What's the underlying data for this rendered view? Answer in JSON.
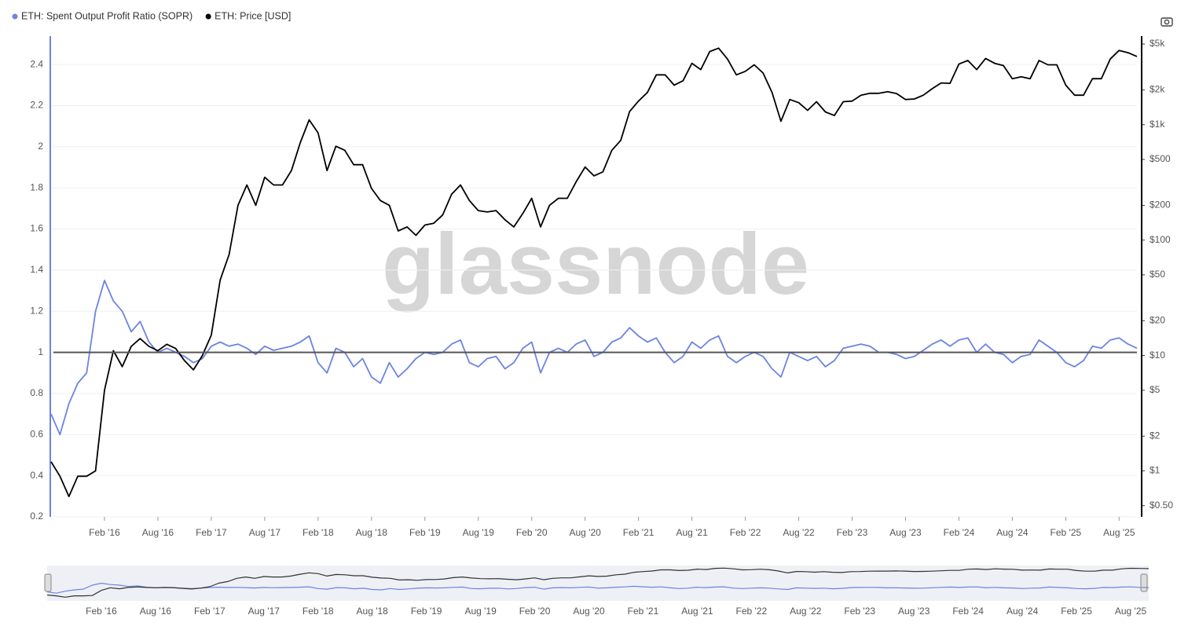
{
  "chart_data": {
    "type": "line",
    "watermark": "glassnode",
    "x": [
      "2015-08",
      "2015-09",
      "2015-10",
      "2015-11",
      "2015-12",
      "2016-01",
      "2016-02",
      "2016-03",
      "2016-04",
      "2016-05",
      "2016-06",
      "2016-07",
      "2016-08",
      "2016-09",
      "2016-10",
      "2016-11",
      "2016-12",
      "2017-01",
      "2017-02",
      "2017-03",
      "2017-04",
      "2017-05",
      "2017-06",
      "2017-07",
      "2017-08",
      "2017-09",
      "2017-10",
      "2017-11",
      "2017-12",
      "2018-01",
      "2018-02",
      "2018-03",
      "2018-04",
      "2018-05",
      "2018-06",
      "2018-07",
      "2018-08",
      "2018-09",
      "2018-10",
      "2018-11",
      "2018-12",
      "2019-01",
      "2019-02",
      "2019-03",
      "2019-04",
      "2019-05",
      "2019-06",
      "2019-07",
      "2019-08",
      "2019-09",
      "2019-10",
      "2019-11",
      "2019-12",
      "2020-01",
      "2020-02",
      "2020-03",
      "2020-04",
      "2020-05",
      "2020-06",
      "2020-07",
      "2020-08",
      "2020-09",
      "2020-10",
      "2020-11",
      "2020-12",
      "2021-01",
      "2021-02",
      "2021-03",
      "2021-04",
      "2021-05",
      "2021-06",
      "2021-07",
      "2021-08",
      "2021-09",
      "2021-10",
      "2021-11",
      "2021-12",
      "2022-01",
      "2022-02",
      "2022-03",
      "2022-04",
      "2022-05",
      "2022-06",
      "2022-07",
      "2022-08",
      "2022-09",
      "2022-10",
      "2022-11",
      "2022-12",
      "2023-01",
      "2023-02",
      "2023-03",
      "2023-04",
      "2023-05",
      "2023-06",
      "2023-07",
      "2023-08",
      "2023-09",
      "2023-10",
      "2023-11",
      "2023-12",
      "2024-01",
      "2024-02",
      "2024-03",
      "2024-04",
      "2024-05",
      "2024-06",
      "2024-07",
      "2024-08",
      "2024-09",
      "2024-10",
      "2024-11",
      "2024-12",
      "2025-01",
      "2025-02",
      "2025-03",
      "2025-04",
      "2025-05",
      "2025-06",
      "2025-07",
      "2025-08",
      "2025-09",
      "2025-10"
    ],
    "series": [
      {
        "name": "ETH: Spent Output Profit Ratio (SOPR)",
        "color": "#6c84e0",
        "axis": "y",
        "values": [
          0.7,
          0.6,
          0.75,
          0.85,
          0.9,
          1.2,
          1.35,
          1.25,
          1.2,
          1.1,
          1.15,
          1.05,
          1.0,
          1.02,
          1.0,
          0.98,
          0.95,
          0.97,
          1.03,
          1.05,
          1.03,
          1.04,
          1.02,
          0.99,
          1.03,
          1.01,
          1.02,
          1.03,
          1.05,
          1.08,
          0.95,
          0.9,
          1.02,
          1.0,
          0.93,
          0.97,
          0.88,
          0.85,
          0.95,
          0.88,
          0.92,
          0.97,
          1.0,
          0.99,
          1.0,
          1.04,
          1.06,
          0.95,
          0.93,
          0.97,
          0.98,
          0.92,
          0.95,
          1.02,
          1.05,
          0.9,
          1.0,
          1.02,
          1.0,
          1.04,
          1.06,
          0.98,
          1.0,
          1.05,
          1.07,
          1.12,
          1.08,
          1.05,
          1.07,
          1.0,
          0.95,
          0.98,
          1.05,
          1.02,
          1.06,
          1.08,
          0.98,
          0.95,
          0.98,
          1.0,
          0.98,
          0.92,
          0.88,
          1.0,
          0.98,
          0.96,
          0.98,
          0.93,
          0.96,
          1.02,
          1.03,
          1.04,
          1.03,
          1.0,
          1.0,
          0.99,
          0.97,
          0.98,
          1.01,
          1.04,
          1.06,
          1.03,
          1.06,
          1.07,
          1.0,
          1.04,
          1.0,
          0.99,
          0.95,
          0.98,
          0.99,
          1.06,
          1.03,
          1.0,
          0.95,
          0.93,
          0.96,
          1.03,
          1.02,
          1.06,
          1.07,
          1.04,
          1.02
        ]
      },
      {
        "name": "ETH: Price [USD]",
        "color": "#000000",
        "axis": "y2",
        "values": [
          1.2,
          0.9,
          0.6,
          0.9,
          0.9,
          1.0,
          5,
          11,
          8,
          12,
          14,
          12,
          11,
          12.5,
          11.5,
          9,
          7.5,
          10,
          15,
          45,
          75,
          200,
          300,
          200,
          350,
          300,
          300,
          400,
          700,
          1100,
          850,
          400,
          650,
          600,
          450,
          450,
          280,
          220,
          200,
          120,
          130,
          110,
          135,
          140,
          165,
          250,
          300,
          220,
          180,
          175,
          180,
          150,
          130,
          170,
          230,
          130,
          200,
          230,
          230,
          320,
          430,
          360,
          390,
          600,
          730,
          1300,
          1600,
          1900,
          2700,
          2700,
          2200,
          2400,
          3400,
          3000,
          4300,
          4600,
          3700,
          2700,
          2900,
          3300,
          2800,
          1900,
          1070,
          1650,
          1550,
          1330,
          1580,
          1290,
          1200,
          1580,
          1600,
          1800,
          1870,
          1870,
          1930,
          1860,
          1650,
          1670,
          1800,
          2050,
          2300,
          2280,
          3350,
          3600,
          3000,
          3750,
          3400,
          3250,
          2500,
          2600,
          2500,
          3600,
          3300,
          3300,
          2200,
          1800,
          1800,
          2500,
          2500,
          3700,
          4400,
          4200,
          3900
        ]
      }
    ],
    "reference_line": 1,
    "xlim": [
      "2015-08",
      "2025-10"
    ],
    "xticks": [
      {
        "value": "2016-02",
        "label": "Feb '16"
      },
      {
        "value": "2016-08",
        "label": "Aug '16"
      },
      {
        "value": "2017-02",
        "label": "Feb '17"
      },
      {
        "value": "2017-08",
        "label": "Aug '17"
      },
      {
        "value": "2018-02",
        "label": "Feb '18"
      },
      {
        "value": "2018-08",
        "label": "Aug '18"
      },
      {
        "value": "2019-02",
        "label": "Feb '19"
      },
      {
        "value": "2019-08",
        "label": "Aug '19"
      },
      {
        "value": "2020-02",
        "label": "Feb '20"
      },
      {
        "value": "2020-08",
        "label": "Aug '20"
      },
      {
        "value": "2021-02",
        "label": "Feb '21"
      },
      {
        "value": "2021-08",
        "label": "Aug '21"
      },
      {
        "value": "2022-02",
        "label": "Feb '22"
      },
      {
        "value": "2022-08",
        "label": "Aug '22"
      },
      {
        "value": "2023-02",
        "label": "Feb '23"
      },
      {
        "value": "2023-08",
        "label": "Aug '23"
      },
      {
        "value": "2024-02",
        "label": "Feb '24"
      },
      {
        "value": "2024-08",
        "label": "Aug '24"
      },
      {
        "value": "2025-02",
        "label": "Feb '25"
      },
      {
        "value": "2025-08",
        "label": "Aug '25"
      }
    ],
    "ylim": [
      0.2,
      2.5
    ],
    "yticks": [
      0.2,
      0.4,
      0.6,
      0.8,
      1,
      1.2,
      1.4,
      1.6,
      1.8,
      2,
      2.2,
      2.4
    ],
    "y2lim": [
      0.4,
      5000
    ],
    "y2_scale": "log",
    "y2ticks": [
      {
        "value": 0.5,
        "label": "$0.50"
      },
      {
        "value": 1,
        "label": "$1"
      },
      {
        "value": 2,
        "label": "$2"
      },
      {
        "value": 5,
        "label": "$5"
      },
      {
        "value": 10,
        "label": "$10"
      },
      {
        "value": 20,
        "label": "$20"
      },
      {
        "value": 50,
        "label": "$50"
      },
      {
        "value": 100,
        "label": "$100"
      },
      {
        "value": 200,
        "label": "$200"
      },
      {
        "value": 500,
        "label": "$500"
      },
      {
        "value": 1000,
        "label": "$1k"
      },
      {
        "value": 2000,
        "label": "$2k"
      },
      {
        "value": 5000,
        "label": "$5k"
      }
    ],
    "grid": true
  }
}
